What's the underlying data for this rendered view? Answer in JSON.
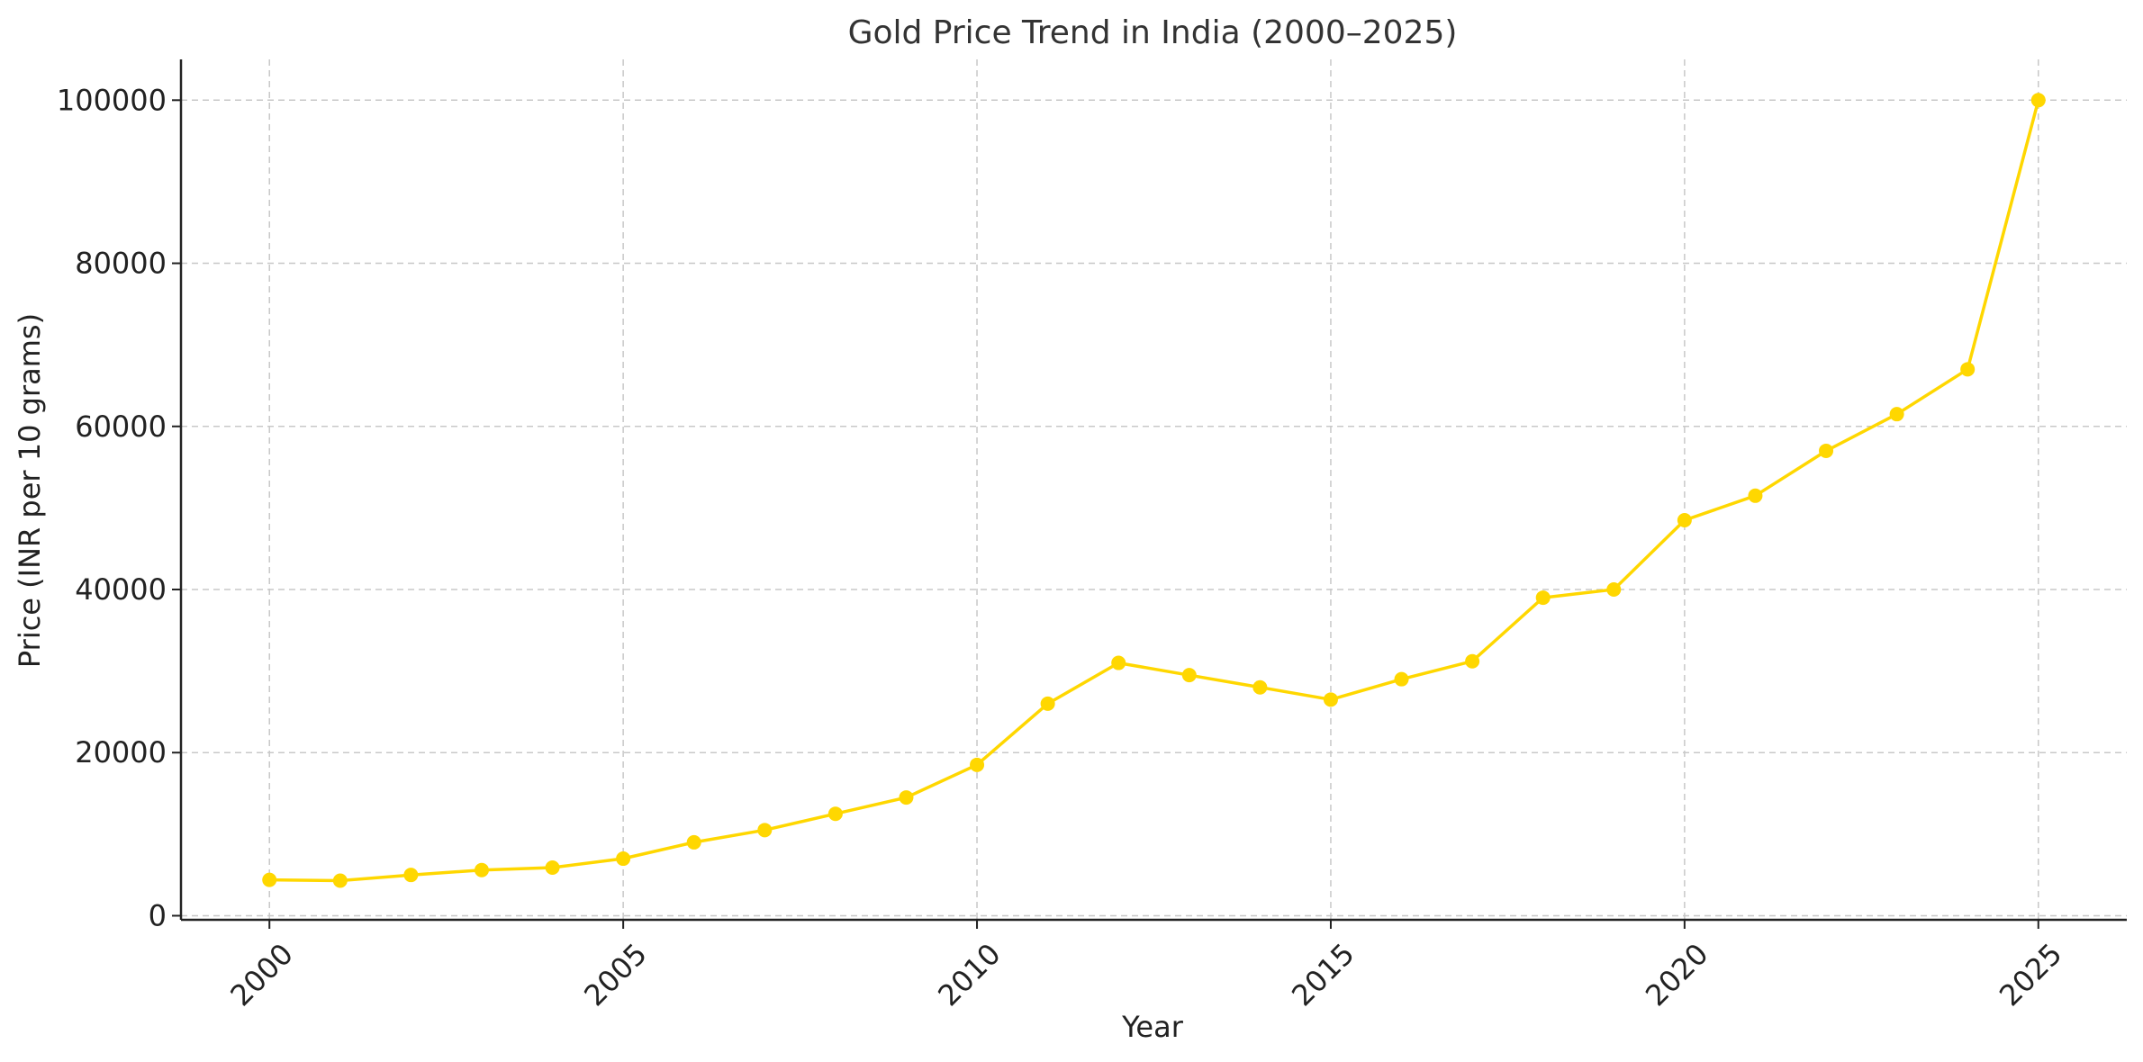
{
  "chart_data": {
    "type": "line",
    "title": "Gold Price Trend in India (2000–2025)",
    "xlabel": "Year",
    "ylabel": "Price (INR per 10 grams)",
    "xlim": [
      1998.75,
      2026.25
    ],
    "ylim": [
      -500,
      105000
    ],
    "xticks": [
      2000,
      2005,
      2010,
      2015,
      2020,
      2025
    ],
    "yticks": [
      0,
      20000,
      40000,
      60000,
      80000,
      100000
    ],
    "grid": true,
    "line_color": "#FFD700",
    "series": [
      {
        "x": [
          2000,
          2001,
          2002,
          2003,
          2004,
          2005,
          2006,
          2007,
          2008,
          2009,
          2010,
          2011,
          2012,
          2013,
          2014,
          2015,
          2016,
          2017,
          2018,
          2019,
          2020,
          2021,
          2022,
          2023,
          2024,
          2025
        ],
        "values": [
          4400,
          4300,
          5000,
          5600,
          5900,
          7000,
          9000,
          10500,
          12500,
          14500,
          18500,
          26000,
          31000,
          29500,
          28000,
          26500,
          29000,
          31200,
          39000,
          40000,
          48500,
          51500,
          57000,
          61500,
          67000,
          100000
        ]
      }
    ]
  }
}
